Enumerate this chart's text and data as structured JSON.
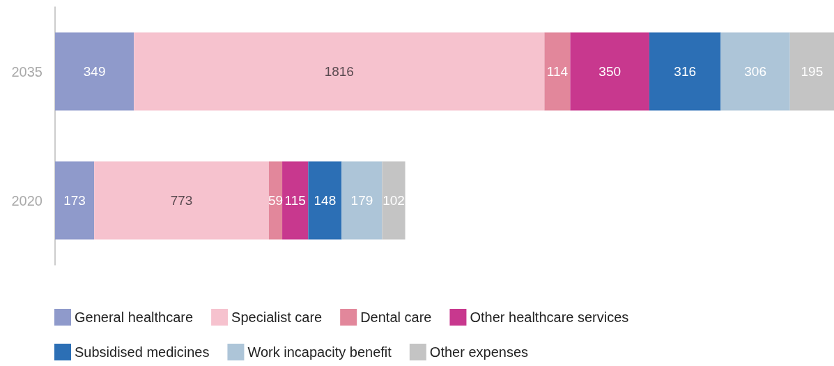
{
  "chart_data": {
    "type": "bar",
    "orientation": "horizontal",
    "stacked": true,
    "categories": [
      "2035",
      "2020"
    ],
    "series": [
      {
        "name": "General healthcare",
        "color": "#8f9acb",
        "values": [
          349,
          173
        ]
      },
      {
        "name": "Specialist care",
        "color": "#f6c2ce",
        "values": [
          1816,
          773
        ]
      },
      {
        "name": "Dental care",
        "color": "#e2879b",
        "values": [
          114,
          59
        ]
      },
      {
        "name": "Other healthcare services",
        "color": "#c8388e",
        "values": [
          350,
          115
        ]
      },
      {
        "name": "Subsidised medicines",
        "color": "#2c6fb5",
        "values": [
          316,
          148
        ]
      },
      {
        "name": "Work incapacity benefit",
        "color": "#adc5d8",
        "values": [
          306,
          179
        ]
      },
      {
        "name": "Other expenses",
        "color": "#c4c4c4",
        "values": [
          195,
          102
        ]
      }
    ],
    "data_labels": true,
    "legend": "bottom"
  }
}
